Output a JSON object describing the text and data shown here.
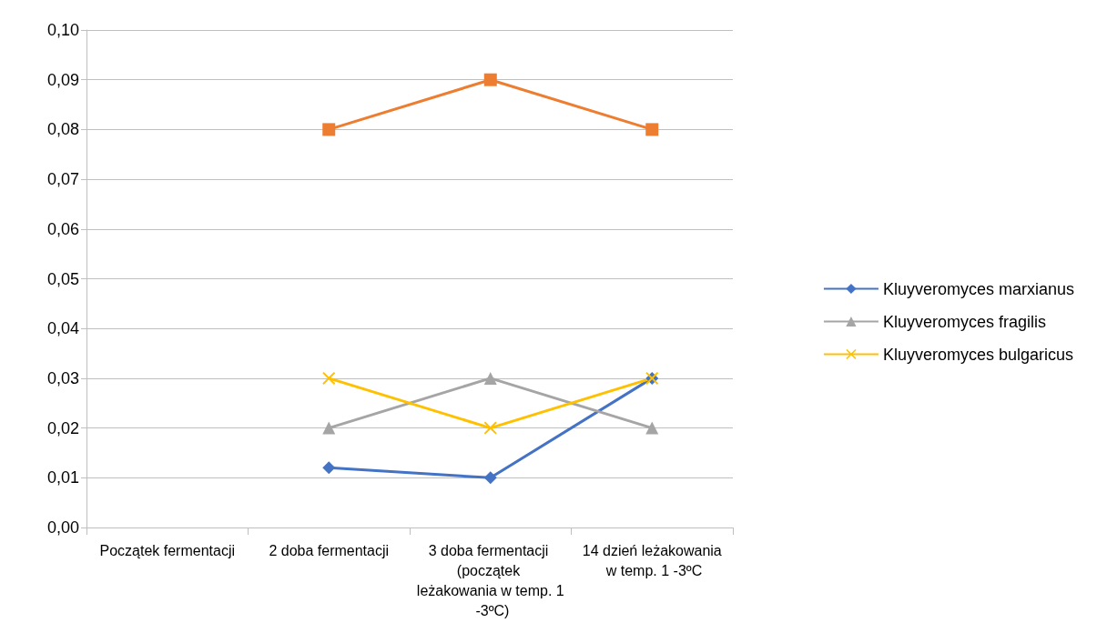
{
  "chart_data": {
    "type": "line",
    "categories": [
      "Początek fermentacji",
      "2 doba fermentacji",
      "3 doba fermentacji (początek leżakowania w temp. 1 -3ºC)",
      "14 dzień leżakowania w temp. 1 -3ºC"
    ],
    "series": [
      {
        "name": "Kluyveromyces marxianus",
        "color": "#4472c4",
        "marker": "diamond",
        "values": [
          null,
          0.012,
          0.01,
          0.03
        ]
      },
      {
        "color": "#ed7d31",
        "marker": "square",
        "values": [
          null,
          0.08,
          0.09,
          0.08
        ]
      },
      {
        "name": "Kluyveromyces fragilis",
        "color": "#a5a5a5",
        "marker": "triangle",
        "values": [
          null,
          0.02,
          0.03,
          0.02
        ]
      },
      {
        "name": "Kluyveromyces bulgaricus",
        "color": "#ffc000",
        "marker": "cross",
        "values": [
          null,
          0.03,
          0.02,
          0.03
        ]
      }
    ],
    "ylim": [
      0,
      0.1
    ],
    "yticks": [
      {
        "value": 0,
        "label": "0,00"
      },
      {
        "value": 0.01,
        "label": "0,01"
      },
      {
        "value": 0.02,
        "label": "0,02"
      },
      {
        "value": 0.03,
        "label": "0,03"
      },
      {
        "value": 0.04,
        "label": "0,04"
      },
      {
        "value": 0.05,
        "label": "0,05"
      },
      {
        "value": 0.06,
        "label": "0,06"
      },
      {
        "value": 0.07,
        "label": "0,07"
      },
      {
        "value": 0.08,
        "label": "0,08"
      },
      {
        "value": 0.09,
        "label": "0,09"
      },
      {
        "value": 0.1,
        "label": "0,10"
      }
    ],
    "grid": "y",
    "legend": "right",
    "line_style": "solid"
  }
}
